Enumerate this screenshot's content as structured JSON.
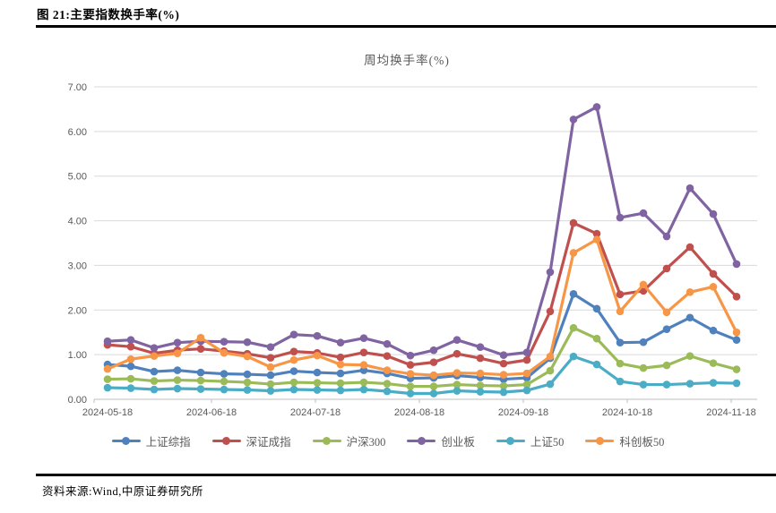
{
  "figure": {
    "title": "图 21:主要指数换手率(%)"
  },
  "source_note": "资料来源:Wind,中原证券研究所",
  "colors": {
    "rule": "#000000",
    "axis_text": "#595959",
    "grid": "#d9d9d9",
    "axis_line": "#bfbfbf"
  },
  "chart_data": {
    "type": "line",
    "title": "周均换手率(%)",
    "xlabel": "",
    "ylabel": "",
    "ylim": [
      0,
      7
    ],
    "grid": true,
    "legend_position": "bottom",
    "y_tick_labels": [
      "0.00",
      "1.00",
      "2.00",
      "3.00",
      "4.00",
      "5.00",
      "6.00",
      "7.00"
    ],
    "x_tick_labels": [
      "2024-05-18",
      "2024-06-18",
      "2024-07-18",
      "2024-08-18",
      "2024-09-18",
      "2024-10-18",
      "2024-11-18"
    ],
    "x_note": "weekly data points, 28 points from 2024-05-18 to 2024-11-18",
    "series": [
      {
        "name": "上证综指",
        "slug": "sse-composite",
        "color": "#4f81bd",
        "values": [
          0.78,
          0.74,
          0.62,
          0.65,
          0.6,
          0.57,
          0.56,
          0.54,
          0.63,
          0.6,
          0.58,
          0.65,
          0.58,
          0.47,
          0.48,
          0.53,
          0.49,
          0.45,
          0.48,
          0.92,
          2.36,
          2.03,
          1.27,
          1.28,
          1.57,
          1.83,
          1.54,
          1.33
        ]
      },
      {
        "name": "深证成指",
        "slug": "szse-component",
        "color": "#c0504d",
        "values": [
          1.22,
          1.18,
          1.03,
          1.1,
          1.13,
          1.08,
          1.02,
          0.93,
          1.07,
          1.04,
          0.94,
          1.05,
          0.97,
          0.77,
          0.83,
          1.02,
          0.92,
          0.8,
          0.88,
          1.97,
          3.95,
          3.71,
          2.35,
          2.43,
          2.93,
          3.41,
          2.81,
          2.3
        ]
      },
      {
        "name": "沪深300",
        "slug": "csi300",
        "color": "#9bbb59",
        "values": [
          0.45,
          0.46,
          0.41,
          0.43,
          0.42,
          0.4,
          0.38,
          0.34,
          0.38,
          0.37,
          0.36,
          0.38,
          0.35,
          0.29,
          0.29,
          0.33,
          0.31,
          0.3,
          0.33,
          0.64,
          1.6,
          1.36,
          0.8,
          0.7,
          0.76,
          0.97,
          0.81,
          0.67
        ]
      },
      {
        "name": "创业板",
        "slug": "chinext",
        "color": "#8064a2",
        "values": [
          1.3,
          1.33,
          1.15,
          1.27,
          1.3,
          1.29,
          1.28,
          1.17,
          1.45,
          1.42,
          1.27,
          1.37,
          1.24,
          0.98,
          1.1,
          1.33,
          1.17,
          0.99,
          1.05,
          2.85,
          6.27,
          6.55,
          4.07,
          4.17,
          3.65,
          4.73,
          4.15,
          3.03
        ]
      },
      {
        "name": "上证50",
        "slug": "sse50",
        "color": "#4bacc6",
        "values": [
          0.26,
          0.25,
          0.22,
          0.24,
          0.23,
          0.22,
          0.21,
          0.19,
          0.22,
          0.21,
          0.2,
          0.22,
          0.18,
          0.13,
          0.13,
          0.19,
          0.17,
          0.16,
          0.2,
          0.34,
          0.96,
          0.78,
          0.4,
          0.33,
          0.33,
          0.35,
          0.37,
          0.36
        ]
      },
      {
        "name": "科创板50",
        "slug": "star50",
        "color": "#f79646",
        "values": [
          0.68,
          0.9,
          0.97,
          1.03,
          1.38,
          1.04,
          0.96,
          0.72,
          0.88,
          0.98,
          0.78,
          0.77,
          0.65,
          0.57,
          0.54,
          0.59,
          0.58,
          0.55,
          0.58,
          0.96,
          3.28,
          3.58,
          1.97,
          2.57,
          1.95,
          2.4,
          2.52,
          1.5
        ]
      }
    ]
  }
}
